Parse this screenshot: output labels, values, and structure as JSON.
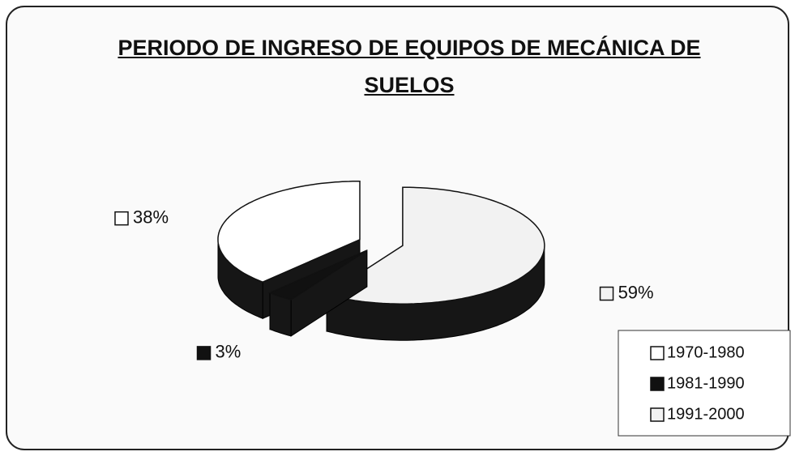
{
  "chart_data": {
    "type": "pie3d",
    "title": "PERIODO DE INGRESO DE EQUIPOS DE MECÁNICA DE SUELOS",
    "categories": [
      "1970-1980",
      "1981-1990",
      "1991-2000"
    ],
    "values": [
      38,
      3,
      59
    ],
    "value_labels": [
      "38%",
      "3%",
      "59%"
    ],
    "colors": [
      "#ffffff",
      "#111111",
      "#f2f2f2"
    ],
    "legend": "bottom-right"
  }
}
